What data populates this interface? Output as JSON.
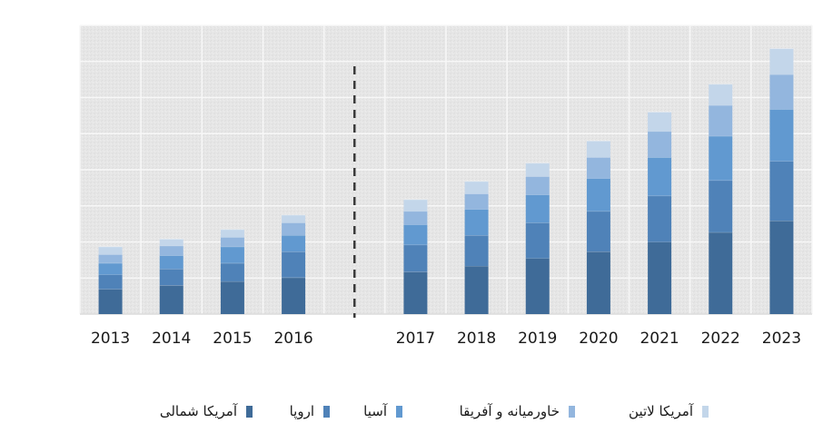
{
  "chart_data": {
    "type": "bar",
    "stacked": true,
    "title": "",
    "xlabel": "",
    "ylabel": "",
    "categories": [
      "2013",
      "2014",
      "2015",
      "2016",
      "2017",
      "2018",
      "2019",
      "2020",
      "2021",
      "2022",
      "2023"
    ],
    "series": [
      {
        "name": "آمریکا شمالی",
        "color": "#3f6b98",
        "values": [
          26,
          30,
          34,
          38,
          44,
          50,
          58,
          65,
          75,
          85,
          97
        ]
      },
      {
        "name": "اروپا",
        "color": "#4f82b8",
        "values": [
          15,
          17,
          19,
          27,
          28,
          32,
          37,
          42,
          48,
          54,
          62
        ]
      },
      {
        "name": "آسیا",
        "color": "#6199d0",
        "values": [
          12,
          14,
          17,
          17,
          21,
          27,
          29,
          34,
          40,
          46,
          54
        ]
      },
      {
        "name": "خاورمیانه و آفریقا",
        "color": "#93b6de",
        "values": [
          9,
          10,
          10,
          13,
          14,
          16,
          19,
          22,
          27,
          32,
          36
        ]
      },
      {
        "name": "آمریکا لاتین",
        "color": "#c3d6ea",
        "values": [
          8,
          7,
          8,
          8,
          12,
          13,
          14,
          17,
          20,
          22,
          27
        ]
      }
    ],
    "ylim": [
      0,
      300
    ],
    "grid": true,
    "forecast_divider_after": "2016",
    "legend_position": "bottom"
  }
}
